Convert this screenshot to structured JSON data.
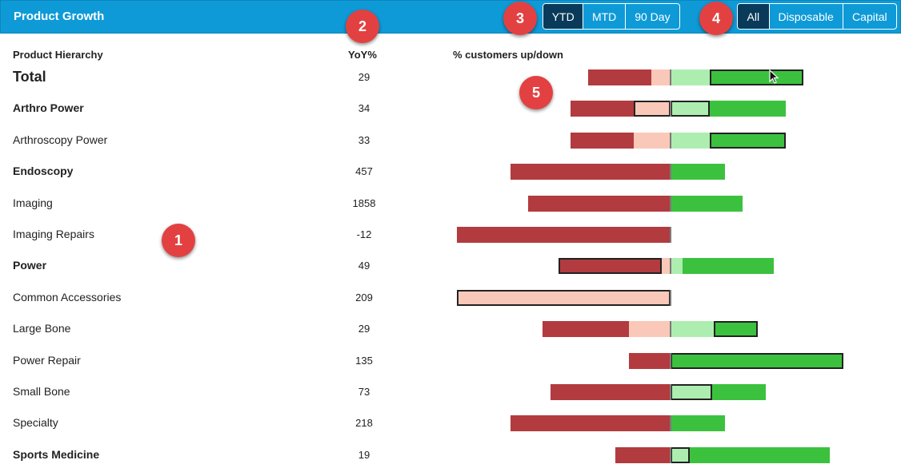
{
  "header": {
    "title": "Product Growth",
    "period_buttons": [
      {
        "label": "YTD",
        "active": true
      },
      {
        "label": "MTD",
        "active": false
      },
      {
        "label": "90 Day",
        "active": false
      }
    ],
    "type_buttons": [
      {
        "label": "All",
        "active": true
      },
      {
        "label": "Disposable",
        "active": false
      },
      {
        "label": "Capital",
        "active": false
      }
    ]
  },
  "columns": {
    "hierarchy": "Product Hierarchy",
    "yoy": "YoY%",
    "customers": "% customers up/down"
  },
  "badges": [
    "1",
    "2",
    "3",
    "4",
    "5"
  ],
  "colors": {
    "header_bg": "#0e9ad7",
    "active_button": "#0a3a5a",
    "badge": "#e34141",
    "down_strong": "#b23b3f",
    "down_light": "#fac8b8",
    "up_light": "#adeeb0",
    "up_strong": "#3cc13f"
  },
  "chart_data": {
    "type": "bar",
    "title": "% customers up/down",
    "note": "Diverging stacked bars; negative = customers down, positive = customers up (relative units, center axis = 0)",
    "categories": [
      "Total",
      "Arthro Power",
      "Arthroscopy Power",
      "Endoscopy",
      "Imaging",
      "Imaging Repairs",
      "Power",
      "Common Accessories",
      "Large Bone",
      "Power Repair",
      "Small Bone",
      "Specialty",
      "Sports Medicine"
    ],
    "series": [
      {
        "name": "down (strong)",
        "values": [
          -79,
          -79,
          -79,
          -200,
          -178,
          -267,
          -129,
          0,
          -108,
          -52,
          -150,
          -200,
          -69
        ]
      },
      {
        "name": "down (light)",
        "values": [
          -24,
          -46,
          -46,
          0,
          0,
          0,
          -11,
          -267,
          -52,
          0,
          0,
          0,
          0
        ]
      },
      {
        "name": "up (light)",
        "values": [
          49,
          49,
          49,
          0,
          0,
          0,
          15,
          0,
          54,
          0,
          52,
          0,
          24
        ]
      },
      {
        "name": "up (strong)",
        "values": [
          117,
          95,
          95,
          68,
          90,
          0,
          114,
          0,
          55,
          216,
          67,
          68,
          175
        ]
      }
    ]
  },
  "rows": [
    {
      "label": "Total",
      "yoy": "29",
      "style": "total",
      "outline": "us",
      "segs": [
        -79,
        -24,
        49,
        117
      ]
    },
    {
      "label": "Arthro Power",
      "yoy": "34",
      "style": "bold",
      "outline": "",
      "segs": [
        -79,
        -46,
        49,
        95
      ]
    },
    {
      "label": "Arthroscopy Power",
      "yoy": "33",
      "style": "normal",
      "outline": "us",
      "segs": [
        -79,
        -46,
        49,
        95
      ]
    },
    {
      "label": "Endoscopy",
      "yoy": "457",
      "style": "bold",
      "outline": "",
      "segs": [
        -200,
        0,
        0,
        68
      ]
    },
    {
      "label": "Imaging",
      "yoy": "1858",
      "style": "normal",
      "outline": "",
      "segs": [
        -178,
        0,
        0,
        90
      ]
    },
    {
      "label": "Imaging Repairs",
      "yoy": "-12",
      "style": "normal",
      "outline": "",
      "segs": [
        -267,
        0,
        0,
        0
      ]
    },
    {
      "label": "Power",
      "yoy": "49",
      "style": "bold",
      "outline": "ds",
      "segs": [
        -129,
        -11,
        15,
        114
      ]
    },
    {
      "label": "Common Accessories",
      "yoy": "209",
      "style": "normal",
      "outline": "",
      "segs": [
        0,
        -267,
        0,
        0
      ]
    },
    {
      "label": "Large Bone",
      "yoy": "29",
      "style": "normal",
      "outline": "us",
      "segs": [
        -108,
        -52,
        54,
        55
      ]
    },
    {
      "label": "Power Repair",
      "yoy": "135",
      "style": "normal",
      "outline": "us",
      "segs": [
        -52,
        0,
        0,
        216
      ]
    },
    {
      "label": "Small Bone",
      "yoy": "73",
      "style": "normal",
      "outline": "",
      "segs": [
        -150,
        0,
        52,
        67
      ]
    },
    {
      "label": "Specialty",
      "yoy": "218",
      "style": "normal",
      "outline": "",
      "segs": [
        -200,
        0,
        0,
        68
      ]
    },
    {
      "label": "Sports Medicine",
      "yoy": "19",
      "style": "bold",
      "outline": "",
      "segs": [
        -69,
        0,
        24,
        175
      ]
    }
  ]
}
